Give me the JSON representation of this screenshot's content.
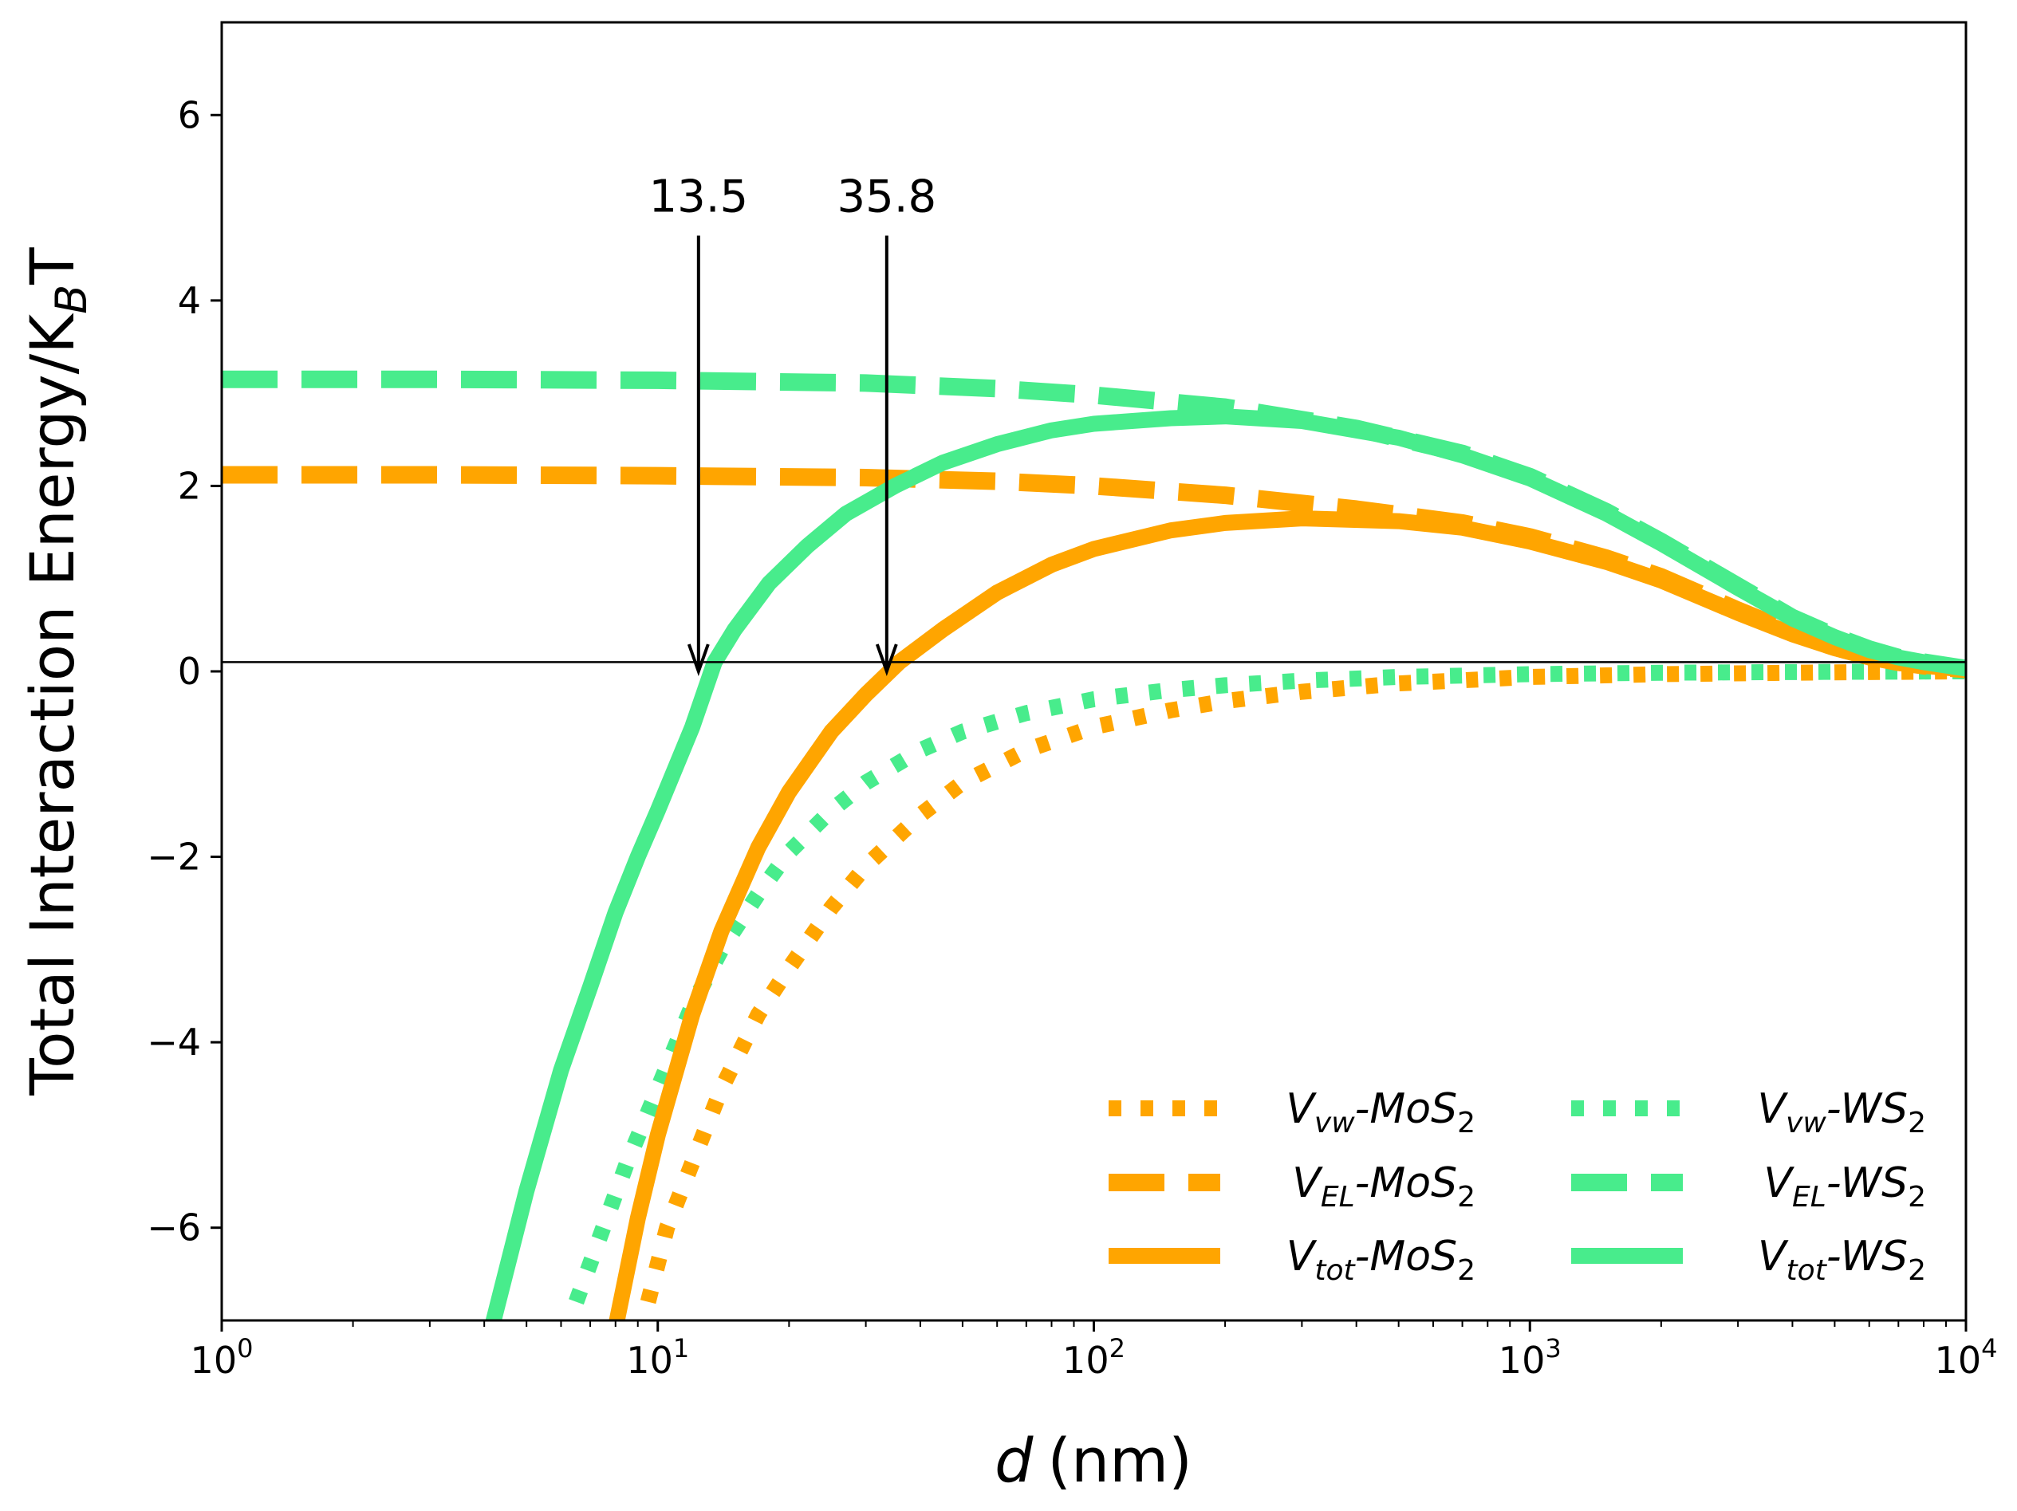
{
  "chart_data": {
    "type": "line",
    "xscale": "log",
    "xlim": [
      1,
      10000
    ],
    "ylim": [
      -7,
      7
    ],
    "xlabel": "d (nm)",
    "xlabel_var": "d",
    "xlabel_unit": "(nm)",
    "ylabel": "Total Interaction Energy/K_B T",
    "ylabel_main": "Total Interaction Energy/K",
    "ylabel_sub": "B",
    "ylabel_tail": "T",
    "xticks": [
      {
        "value": 1,
        "base": "10",
        "exp": "0"
      },
      {
        "value": 10,
        "base": "10",
        "exp": "1"
      },
      {
        "value": 100,
        "base": "10",
        "exp": "2"
      },
      {
        "value": 1000,
        "base": "10",
        "exp": "3"
      },
      {
        "value": 10000,
        "base": "10",
        "exp": "4"
      }
    ],
    "yticks": [
      {
        "value": 6,
        "label": "6"
      },
      {
        "value": 4,
        "label": "4"
      },
      {
        "value": 2,
        "label": "2"
      },
      {
        "value": 0,
        "label": "0"
      },
      {
        "value": -2,
        "label": "−2"
      },
      {
        "value": -4,
        "label": "−4"
      },
      {
        "value": -6,
        "label": "−6"
      }
    ],
    "reference_line_y": 0.1,
    "annotations": [
      {
        "text": "13.5",
        "x": 12.4,
        "y_from": 4.7,
        "y_to": 0.0
      },
      {
        "text": "35.8",
        "x": 33.5,
        "y_from": 4.7,
        "y_to": 0.0
      }
    ],
    "colors": {
      "MoS2": "#FFA500",
      "WS2": "#48EC8C"
    },
    "series": [
      {
        "name": "V_vw-MoS2",
        "label_main": "V",
        "label_sub": "vw",
        "label_tail": "-MoS",
        "label_sub2": "2",
        "material": "MoS2",
        "style": "dotted",
        "x": [
          9.5,
          10.5,
          12,
          14,
          17,
          20,
          25,
          30,
          40,
          50,
          70,
          100,
          150,
          200,
          300,
          500,
          1000,
          2000,
          5000,
          10000
        ],
        "y": [
          -6.8,
          -6.0,
          -5.3,
          -4.5,
          -3.7,
          -3.2,
          -2.55,
          -2.1,
          -1.55,
          -1.2,
          -0.85,
          -0.6,
          -0.42,
          -0.32,
          -0.22,
          -0.13,
          -0.06,
          -0.03,
          -0.01,
          0.0
        ]
      },
      {
        "name": "V_EL-MoS2",
        "label_main": "V",
        "label_sub": "EL",
        "label_tail": "-MoS",
        "label_sub2": "2",
        "material": "MoS2",
        "style": "dashed",
        "x": [
          1,
          3,
          10,
          30,
          60,
          100,
          200,
          400,
          700,
          1000,
          1500,
          2000,
          3000,
          4000,
          5000,
          6000,
          7000,
          8000,
          10000
        ],
        "y": [
          2.12,
          2.12,
          2.11,
          2.09,
          2.05,
          2.0,
          1.9,
          1.75,
          1.6,
          1.45,
          1.22,
          1.02,
          0.66,
          0.42,
          0.26,
          0.16,
          0.1,
          0.06,
          0.02
        ]
      },
      {
        "name": "V_tot-MoS2",
        "label_main": "V",
        "label_sub": "tot",
        "label_tail": "-MoS",
        "label_sub2": "2",
        "material": "MoS2",
        "style": "solid",
        "x": [
          7.9,
          9,
          10,
          12,
          14,
          17,
          20,
          25,
          30,
          35.8,
          45,
          60,
          80,
          100,
          150,
          200,
          300,
          500,
          700,
          1000,
          1500,
          2000,
          3000,
          4000,
          5000,
          6000,
          7000,
          8000,
          10000
        ],
        "y": [
          -7.2,
          -5.9,
          -5.0,
          -3.7,
          -2.8,
          -1.9,
          -1.3,
          -0.65,
          -0.25,
          0.1,
          0.45,
          0.85,
          1.15,
          1.32,
          1.52,
          1.6,
          1.65,
          1.62,
          1.55,
          1.4,
          1.18,
          0.98,
          0.63,
          0.4,
          0.25,
          0.15,
          0.09,
          0.06,
          0.02
        ]
      },
      {
        "name": "V_vw-WS2",
        "label_main": "V",
        "label_sub": "vw",
        "label_tail": "-WS",
        "label_sub2": "2",
        "material": "WS2",
        "style": "dotted",
        "x": [
          6.5,
          7.5,
          8.5,
          10,
          12,
          14,
          17,
          20,
          25,
          30,
          40,
          50,
          70,
          100,
          150,
          200,
          300,
          500,
          1000,
          2000,
          5000,
          10000
        ],
        "y": [
          -6.8,
          -6.0,
          -5.3,
          -4.5,
          -3.6,
          -3.0,
          -2.4,
          -1.95,
          -1.5,
          -1.2,
          -0.85,
          -0.65,
          -0.45,
          -0.3,
          -0.2,
          -0.15,
          -0.1,
          -0.06,
          -0.03,
          -0.015,
          -0.005,
          0.0
        ]
      },
      {
        "name": "V_EL-WS2",
        "label_main": "V",
        "label_sub": "EL",
        "label_tail": "-WS",
        "label_sub2": "2",
        "material": "WS2",
        "style": "dashed",
        "x": [
          1,
          3,
          10,
          30,
          60,
          100,
          200,
          400,
          700,
          1000,
          1500,
          2000,
          3000,
          4000,
          5000,
          6000,
          7000,
          8000,
          10000
        ],
        "y": [
          3.15,
          3.15,
          3.14,
          3.11,
          3.05,
          2.98,
          2.85,
          2.62,
          2.35,
          2.1,
          1.72,
          1.4,
          0.92,
          0.58,
          0.38,
          0.24,
          0.15,
          0.1,
          0.03
        ]
      },
      {
        "name": "V_tot-WS2",
        "label_main": "V",
        "label_sub": "tot",
        "label_tail": "-WS",
        "label_sub2": "2",
        "material": "WS2",
        "style": "solid",
        "x": [
          4.1,
          5,
          6,
          7,
          8,
          9,
          10,
          12,
          13.5,
          15,
          18,
          22,
          27,
          35,
          45,
          60,
          80,
          100,
          150,
          200,
          300,
          500,
          700,
          1000,
          1500,
          2000,
          3000,
          4000,
          5000,
          6000,
          7000,
          8000,
          10000
        ],
        "y": [
          -7.2,
          -5.6,
          -4.3,
          -3.4,
          -2.6,
          -2.0,
          -1.5,
          -0.6,
          0.1,
          0.45,
          0.95,
          1.35,
          1.7,
          2.0,
          2.25,
          2.45,
          2.6,
          2.67,
          2.73,
          2.75,
          2.7,
          2.52,
          2.33,
          2.08,
          1.7,
          1.38,
          0.9,
          0.57,
          0.37,
          0.23,
          0.15,
          0.1,
          0.03
        ]
      }
    ]
  }
}
